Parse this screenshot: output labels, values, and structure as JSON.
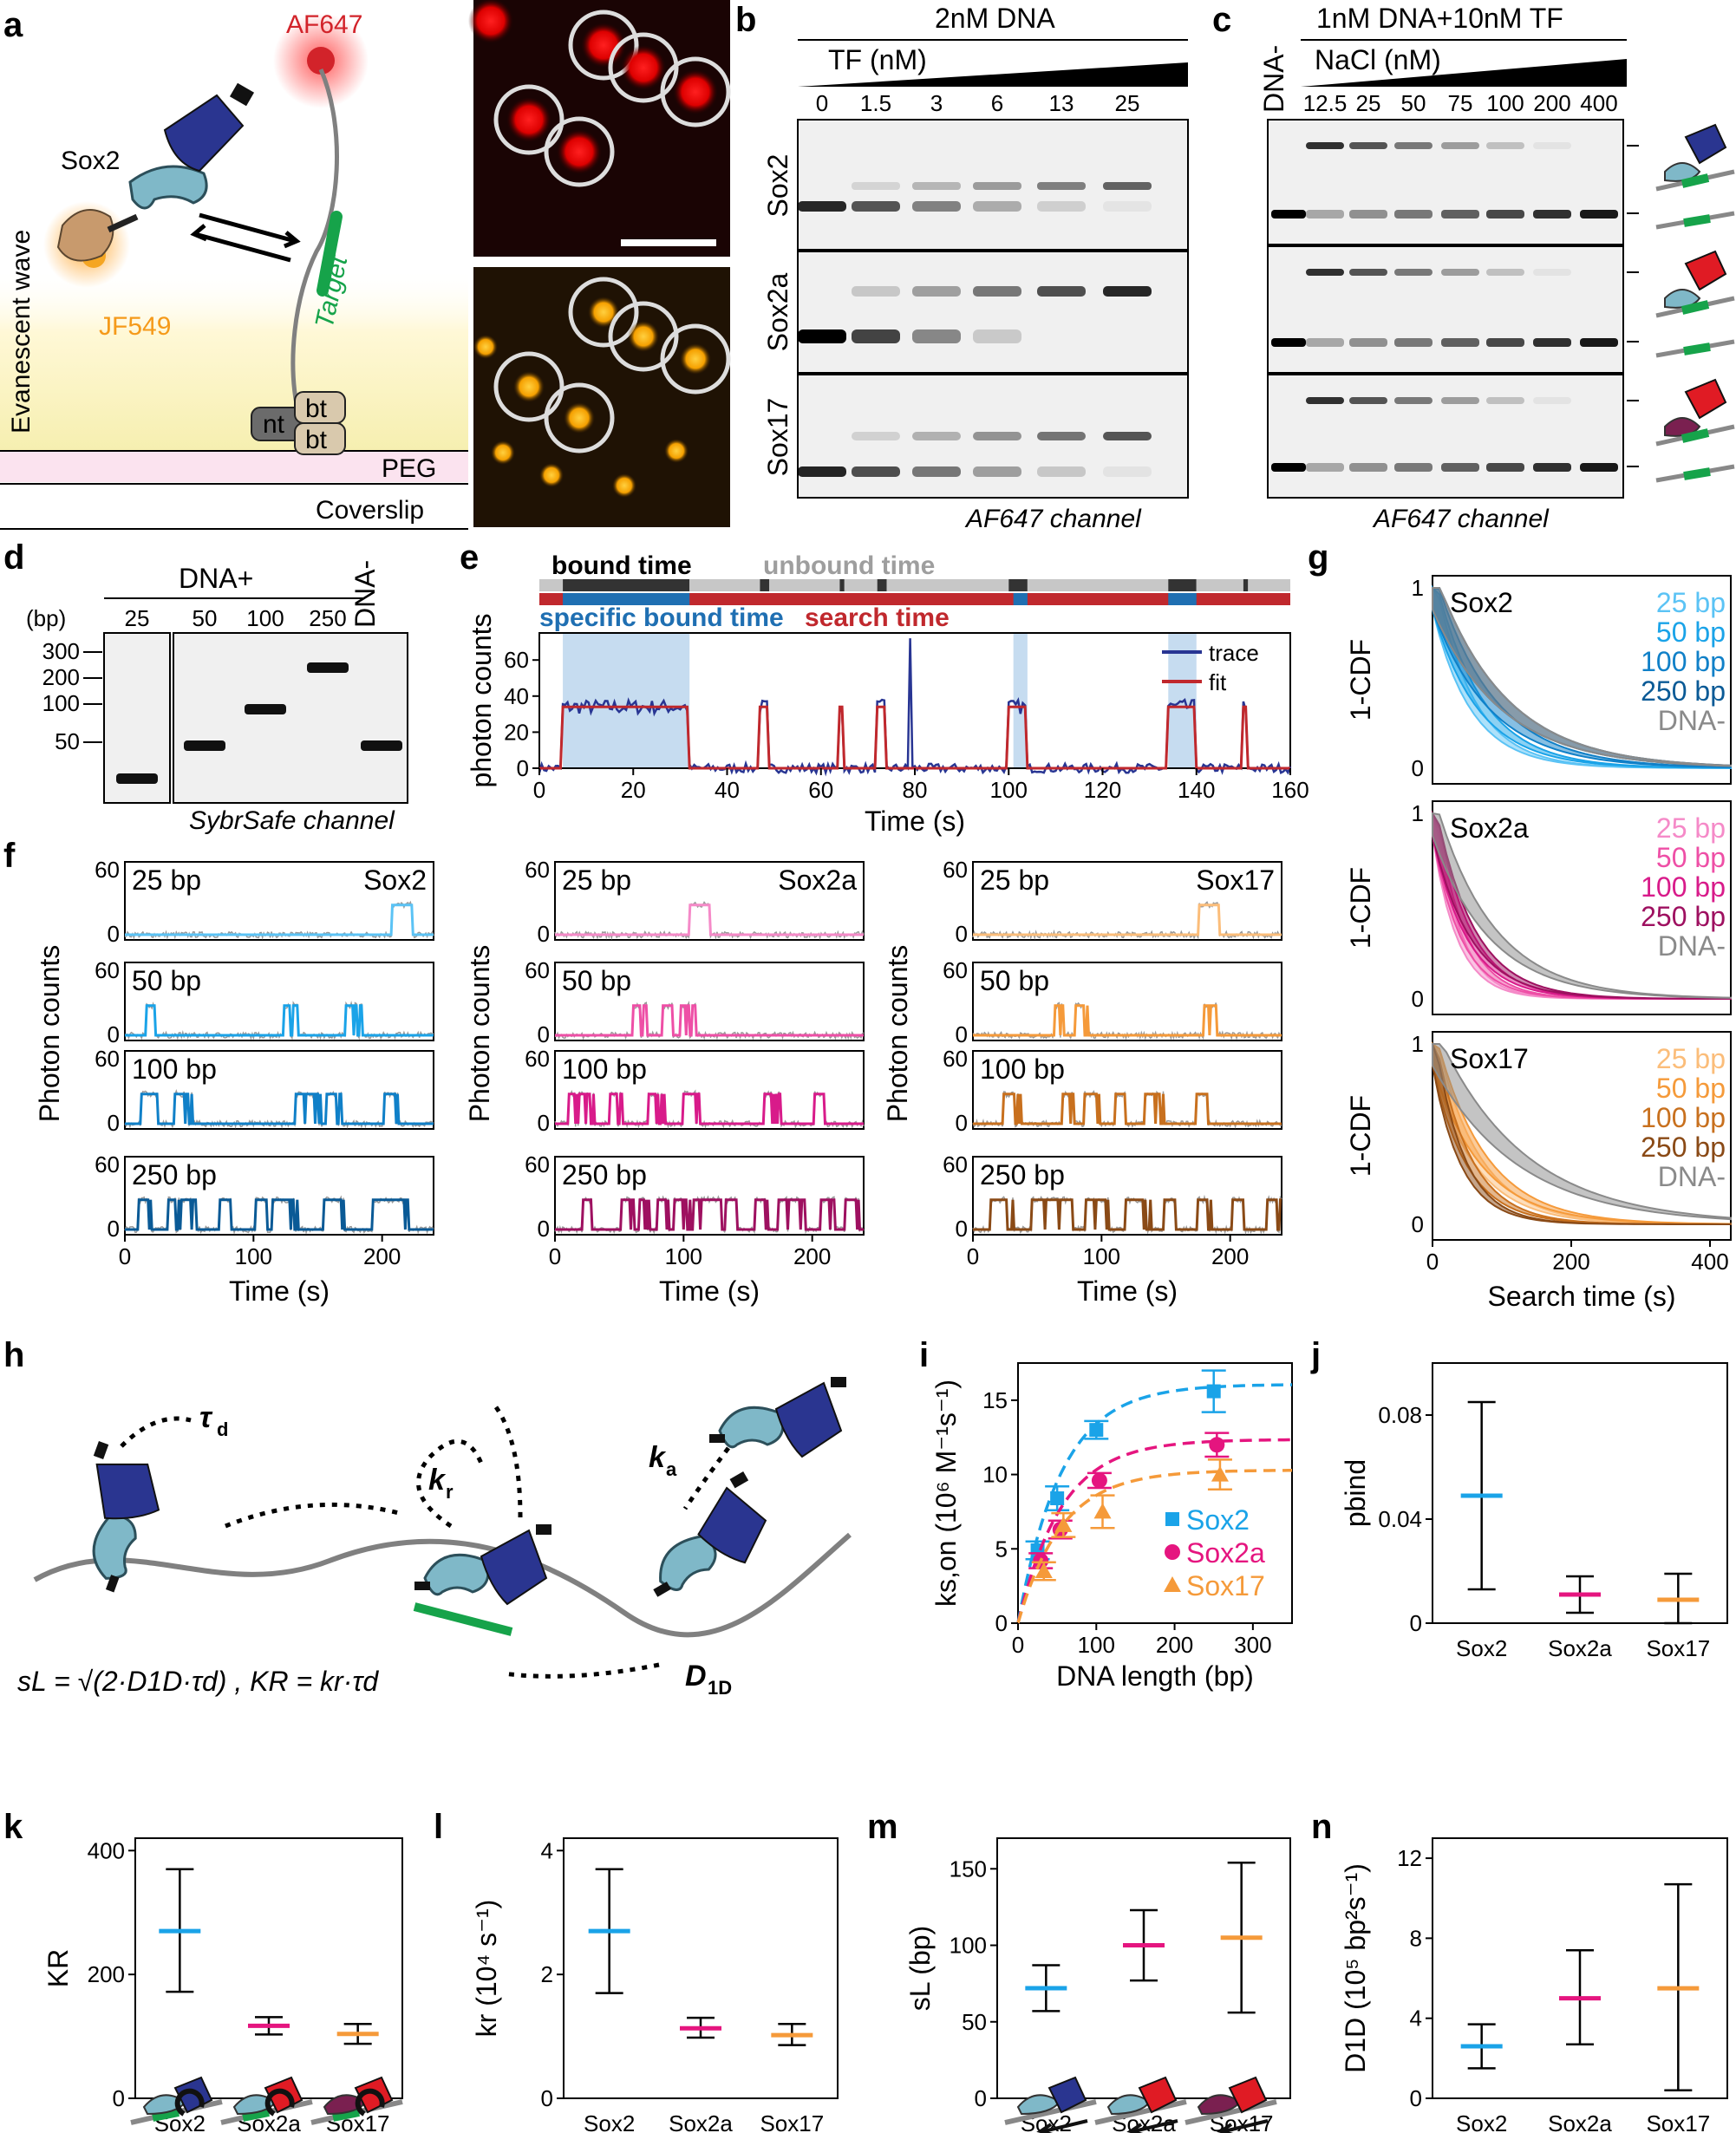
{
  "panels": {
    "a": {
      "label": "a",
      "af647": "AF647",
      "sox2": "Sox2",
      "jf549": "JF549",
      "target": "Target",
      "wave": "Evanescent wave",
      "nt": "nt",
      "bt1": "bt",
      "bt2": "bt",
      "peg": "PEG",
      "coverslip": "Coverslip"
    },
    "b": {
      "label": "b",
      "title": "2nM DNA",
      "tf": "TF (nM)",
      "lanes": [
        "0",
        "1.5",
        "3",
        "6",
        "13",
        "25"
      ],
      "rows": [
        "Sox2",
        "Sox2a",
        "Sox17"
      ],
      "channel": "AF647 channel"
    },
    "c": {
      "label": "c",
      "title": "1nM DNA+10nM TF",
      "dna_minus": "DNA-",
      "nacl": "NaCl (nM)",
      "lanes": [
        "12.5",
        "25",
        "50",
        "75",
        "100",
        "200",
        "400"
      ],
      "channel": "AF647 channel"
    },
    "d": {
      "label": "d",
      "title": "DNA+",
      "bp": "(bp)",
      "ladder": [
        "300",
        "200",
        "100",
        "50"
      ],
      "lanes": [
        "25",
        "50",
        "100",
        "250"
      ],
      "dna_minus": "DNA-",
      "channel": "SybrSafe channel"
    },
    "e": {
      "label": "e",
      "bound": "bound time",
      "unbound": "unbound time",
      "specific": "specific bound time",
      "search": "search time",
      "ylabel": "photon counts",
      "xlabel": "Time (s)",
      "legend": [
        "trace",
        "fit"
      ],
      "xticks": [
        "0",
        "20",
        "40",
        "60",
        "80",
        "100",
        "120",
        "140",
        "160"
      ],
      "yticks": [
        "0",
        "20",
        "40",
        "60"
      ]
    },
    "f": {
      "label": "f",
      "ylabel": "Photon counts",
      "xlabel": "Time (s)",
      "cols": [
        "Sox2",
        "Sox2a",
        "Sox17"
      ],
      "rows": [
        "25 bp",
        "50 bp",
        "100 bp",
        "250 bp"
      ],
      "xticks": [
        "0",
        "100",
        "200"
      ],
      "yticks": [
        "0",
        "60"
      ]
    },
    "g": {
      "label": "g",
      "ylabel": "1-CDF",
      "xlabel": "Search time (s)",
      "xticks": [
        "0",
        "200",
        "400"
      ],
      "yticks": [
        "0",
        "1"
      ],
      "groups": [
        {
          "name": "Sox2",
          "legend": [
            "25 bp",
            "50 bp",
            "100 bp",
            "250 bp",
            "DNA-"
          ],
          "colors": [
            "#5bc3f5",
            "#1aa3e8",
            "#1080c8",
            "#0a5a96",
            "#8a8a8a"
          ]
        },
        {
          "name": "Sox2a",
          "legend": [
            "25 bp",
            "50 bp",
            "100 bp",
            "250 bp",
            "DNA-"
          ],
          "colors": [
            "#f58ac8",
            "#ee4fa6",
            "#d81b8a",
            "#9e1060",
            "#8a8a8a"
          ]
        },
        {
          "name": "Sox17",
          "legend": [
            "25 bp",
            "50 bp",
            "100 bp",
            "250 bp",
            "DNA-"
          ],
          "colors": [
            "#fbbd7a",
            "#f59a3a",
            "#c8701e",
            "#8a4a16",
            "#8a8a8a"
          ]
        }
      ]
    },
    "h": {
      "label": "h",
      "tau": "τ",
      "tau_sub": "d",
      "kr": "k",
      "kr_sub": "r",
      "ka": "k",
      "ka_sub": "a",
      "d1d": "D",
      "d1d_sub": "1D",
      "formula": "sL = √(2·D1D·τd) , KR = kr·τd"
    },
    "i": {
      "label": "i",
      "ylabel": "ks,on (10⁶ M⁻¹s⁻¹)",
      "xlabel": "DNA length (bp)",
      "xticks": [
        "0",
        "100",
        "200",
        "300"
      ],
      "yticks": [
        "0",
        "5",
        "10",
        "15"
      ],
      "legend": [
        "Sox2",
        "Sox2a",
        "Sox17"
      ]
    },
    "j": {
      "label": "j",
      "ylabel": "pbind",
      "yticks": [
        "0",
        "0.04",
        "0.08"
      ],
      "cats": [
        "Sox2",
        "Sox2a",
        "Sox17"
      ]
    },
    "k": {
      "label": "k",
      "ylabel": "KR",
      "yticks": [
        "0",
        "200",
        "400"
      ],
      "cats": [
        "Sox2",
        "Sox2a",
        "Sox17"
      ]
    },
    "l": {
      "label": "l",
      "ylabel": "kr (10⁴ s⁻¹)",
      "yticks": [
        "0",
        "2",
        "4"
      ],
      "cats": [
        "Sox2",
        "Sox2a",
        "Sox17"
      ]
    },
    "m": {
      "label": "m",
      "ylabel": "sL (bp)",
      "yticks": [
        "0",
        "50",
        "100",
        "150"
      ],
      "cats": [
        "Sox2",
        "Sox2a",
        "Sox17"
      ]
    },
    "n": {
      "label": "n",
      "ylabel": "D1D (10⁵ bp²s⁻¹)",
      "yticks": [
        "0",
        "4",
        "8",
        "12"
      ],
      "cats": [
        "Sox2",
        "Sox2a",
        "Sox17"
      ]
    }
  },
  "colors": {
    "sox2": "#1aa3e8",
    "sox2a": "#e5157f",
    "sox17": "#f59a3a",
    "fit": "#c0282d",
    "trace": "#283593",
    "dark": "#1f2d8a"
  },
  "chart_data": [
    {
      "type": "scatter",
      "panel": "i",
      "xlabel": "DNA length (bp)",
      "ylabel": "ks,on (10⁶ M⁻¹s⁻¹)",
      "xlim": [
        0,
        350
      ],
      "ylim": [
        0,
        17.5
      ],
      "x": [
        25,
        50,
        100,
        250
      ],
      "series": [
        {
          "name": "Sox2",
          "values": [
            4.9,
            8.4,
            13.0,
            15.6
          ],
          "err": [
            0.6,
            0.8,
            0.6,
            1.4
          ]
        },
        {
          "name": "Sox2a",
          "values": [
            4.2,
            6.3,
            9.6,
            12.0
          ],
          "err": [
            0.5,
            0.6,
            0.5,
            0.8
          ]
        },
        {
          "name": "Sox17",
          "values": [
            3.5,
            6.6,
            7.5,
            10.0
          ],
          "err": [
            0.6,
            0.8,
            1.1,
            1.0
          ]
        }
      ]
    },
    {
      "type": "scatter",
      "panel": "j",
      "ylabel": "pbind",
      "ylim": [
        0,
        0.1
      ],
      "categories": [
        "Sox2",
        "Sox2a",
        "Sox17"
      ],
      "values": [
        0.049,
        0.011,
        0.009
      ],
      "low": [
        0.013,
        0.004,
        0.0
      ],
      "high": [
        0.085,
        0.018,
        0.019
      ]
    },
    {
      "type": "scatter",
      "panel": "k",
      "ylabel": "KR",
      "ylim": [
        0,
        420
      ],
      "categories": [
        "Sox2",
        "Sox2a",
        "Sox17"
      ],
      "values": [
        270,
        117,
        104
      ],
      "low": [
        172,
        103,
        88
      ],
      "high": [
        370,
        131,
        120
      ]
    },
    {
      "type": "scatter",
      "panel": "l",
      "ylabel": "kr (10⁴ s⁻¹)",
      "ylim": [
        0,
        4.2
      ],
      "categories": [
        "Sox2",
        "Sox2a",
        "Sox17"
      ],
      "values": [
        2.7,
        1.13,
        1.02
      ],
      "low": [
        1.7,
        0.98,
        0.86
      ],
      "high": [
        3.7,
        1.3,
        1.2
      ]
    },
    {
      "type": "scatter",
      "panel": "m",
      "ylabel": "sL (bp)",
      "ylim": [
        0,
        170
      ],
      "categories": [
        "Sox2",
        "Sox2a",
        "Sox17"
      ],
      "values": [
        72,
        100,
        105
      ],
      "low": [
        57,
        77,
        56
      ],
      "high": [
        87,
        123,
        154
      ]
    },
    {
      "type": "scatter",
      "panel": "n",
      "ylabel": "D1D (10⁵ bp²s⁻¹)",
      "ylim": [
        0,
        13
      ],
      "categories": [
        "Sox2",
        "Sox2a",
        "Sox17"
      ],
      "values": [
        2.6,
        5.0,
        5.5
      ],
      "low": [
        1.5,
        2.7,
        0.4
      ],
      "high": [
        3.7,
        7.4,
        10.7
      ]
    }
  ]
}
